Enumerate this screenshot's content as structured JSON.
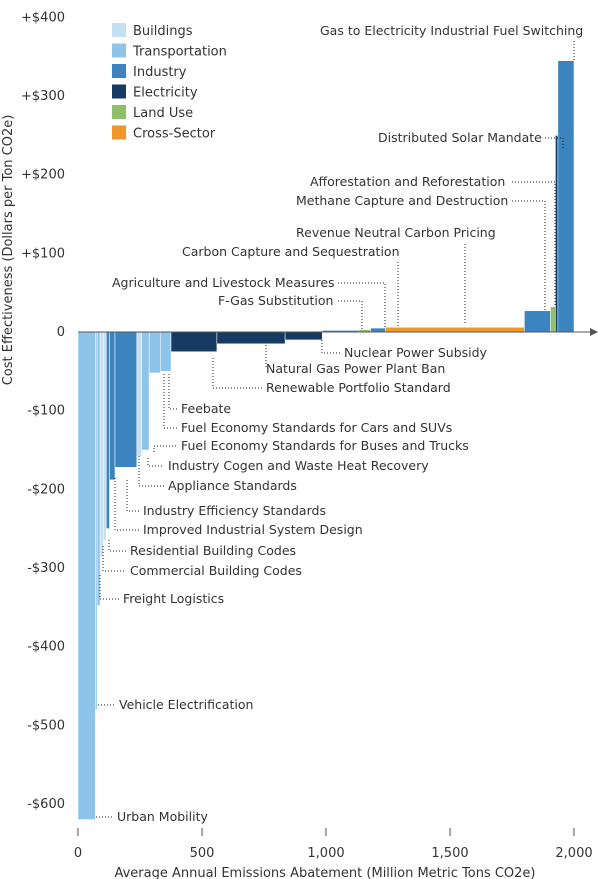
{
  "chart_data": {
    "type": "bar",
    "subtype": "marginal-abatement-cost-curve",
    "title": "",
    "xlabel": "Average Annual Emissions Abatement (Million Metric Tons CO2e)",
    "ylabel": "Cost Effectiveness (Dollars per Ton CO2e)",
    "xlim": [
      0,
      2040
    ],
    "ylim": [
      -630,
      400
    ],
    "x_ticks": [
      {
        "value": 0,
        "label": "0"
      },
      {
        "value": 500,
        "label": "500"
      },
      {
        "value": 1000,
        "label": "1,000"
      },
      {
        "value": 1500,
        "label": "1,500"
      },
      {
        "value": 2000,
        "label": "2,000"
      }
    ],
    "y_ticks": [
      {
        "value": 400,
        "label": "+$400"
      },
      {
        "value": 300,
        "label": "+$300"
      },
      {
        "value": 200,
        "label": "+$200"
      },
      {
        "value": 100,
        "label": "+$100"
      },
      {
        "value": 0,
        "label": "0"
      },
      {
        "value": -100,
        "label": "-$100"
      },
      {
        "value": -200,
        "label": "-$200"
      },
      {
        "value": -300,
        "label": "-$300"
      },
      {
        "value": -400,
        "label": "-$400"
      },
      {
        "value": -500,
        "label": "-$500"
      },
      {
        "value": -600,
        "label": "-$600"
      }
    ],
    "grid": false,
    "legend_position": "top-left",
    "sectors": [
      {
        "key": "buildings",
        "name": "Buildings",
        "color": "#c6dff1"
      },
      {
        "key": "transportation",
        "name": "Transportation",
        "color": "#8ec4ea"
      },
      {
        "key": "industry",
        "name": "Industry",
        "color": "#3b84bf"
      },
      {
        "key": "electricity",
        "name": "Electricity",
        "color": "#173a62"
      },
      {
        "key": "land_use",
        "name": "Land Use",
        "color": "#8dbf6d"
      },
      {
        "key": "cross_sector",
        "name": "Cross-Sector",
        "color": "#f0962a"
      }
    ],
    "measures": [
      {
        "name": "Urban Mobility",
        "sector": "transportation",
        "start": 0,
        "width": 70,
        "cost": -620
      },
      {
        "name": "Vehicle Electrification",
        "sector": "transportation",
        "start": 70,
        "width": 7,
        "cost": -480
      },
      {
        "name": "Freight Logistics",
        "sector": "transportation",
        "start": 77,
        "width": 12,
        "cost": -348
      },
      {
        "name": "Commercial Building Codes",
        "sector": "buildings",
        "start": 89,
        "width": 13,
        "cost": -285
      },
      {
        "name": "Residential Building Codes",
        "sector": "buildings",
        "start": 102,
        "width": 12,
        "cost": -265
      },
      {
        "name": "Improved Industrial System Design",
        "sector": "industry",
        "start": 114,
        "width": 13,
        "cost": -250
      },
      {
        "name": "Industry Efficiency Standards",
        "sector": "industry",
        "start": 127,
        "width": 22,
        "cost": -188
      },
      {
        "name": "Industry Cogen and Waste Heat Recovery",
        "sector": "industry",
        "start": 149,
        "width": 88,
        "cost": -172
      },
      {
        "name": "Appliance Standards",
        "sector": "buildings",
        "start": 237,
        "width": 20,
        "cost": -158
      },
      {
        "name": "Fuel Economy Standards for Buses and Trucks",
        "sector": "transportation",
        "start": 257,
        "width": 30,
        "cost": -150
      },
      {
        "name": "Fuel Economy Standards for Cars and SUVs",
        "sector": "transportation",
        "start": 287,
        "width": 45,
        "cost": -52
      },
      {
        "name": "Feebate",
        "sector": "transportation",
        "start": 332,
        "width": 43,
        "cost": -50
      },
      {
        "name": "Renewable Portfolio Standard",
        "sector": "electricity",
        "start": 375,
        "width": 185,
        "cost": -25
      },
      {
        "name": "Natural Gas Power Plant Ban",
        "sector": "electricity",
        "start": 560,
        "width": 275,
        "cost": -15
      },
      {
        "name": "Nuclear Power Subsidy",
        "sector": "electricity",
        "start": 835,
        "width": 150,
        "cost": -10
      },
      {
        "name": "F-Gas Substitution",
        "sector": "industry",
        "start": 985,
        "width": 145,
        "cost": 2
      },
      {
        "name": "Agriculture and Livestock Measures",
        "sector": "land_use",
        "start": 1130,
        "width": 50,
        "cost": 3
      },
      {
        "name": "Carbon Capture and Sequestration",
        "sector": "industry",
        "start": 1180,
        "width": 60,
        "cost": 5
      },
      {
        "name": "Revenue Neutral Carbon Pricing",
        "sector": "cross_sector",
        "start": 1240,
        "width": 560,
        "cost": 6
      },
      {
        "name": "Methane Capture and Destruction",
        "sector": "industry",
        "start": 1800,
        "width": 105,
        "cost": 27
      },
      {
        "name": "Afforestation and Reforestation",
        "sector": "land_use",
        "start": 1905,
        "width": 20,
        "cost": 32
      },
      {
        "name": "Distributed Solar Mandate",
        "sector": "electricity",
        "start": 1925,
        "width": 10,
        "cost": 250
      },
      {
        "name": "Gas to Electricity Industrial Fuel Switching",
        "sector": "industry",
        "start": 1935,
        "width": 65,
        "cost": 345
      }
    ],
    "annotations": [
      {
        "text": "Gas to Electricity Industrial Fuel Switching"
      },
      {
        "text": "Distributed Solar Mandate"
      },
      {
        "text": "Afforestation and Reforestation"
      },
      {
        "text": "Methane Capture and Destruction"
      },
      {
        "text": "Revenue Neutral Carbon Pricing"
      },
      {
        "text": "Carbon Capture and Sequestration"
      },
      {
        "text": "Agriculture and Livestock Measures"
      },
      {
        "text": "F-Gas Substitution"
      },
      {
        "text": "Nuclear Power Subsidy"
      },
      {
        "text": "Natural Gas Power Plant Ban"
      },
      {
        "text": "Renewable Portfolio Standard"
      },
      {
        "text": "Feebate"
      },
      {
        "text": "Fuel Economy Standards for Cars and SUVs"
      },
      {
        "text": "Fuel Economy Standards for Buses and Trucks"
      },
      {
        "text": "Industry Cogen and Waste Heat Recovery"
      },
      {
        "text": "Appliance Standards"
      },
      {
        "text": "Industry Efficiency Standards"
      },
      {
        "text": "Improved Industrial System Design"
      },
      {
        "text": "Residential Building Codes"
      },
      {
        "text": "Commercial Building Codes"
      },
      {
        "text": "Freight Logistics"
      },
      {
        "text": "Vehicle Electrification"
      },
      {
        "text": "Urban Mobility"
      }
    ]
  }
}
